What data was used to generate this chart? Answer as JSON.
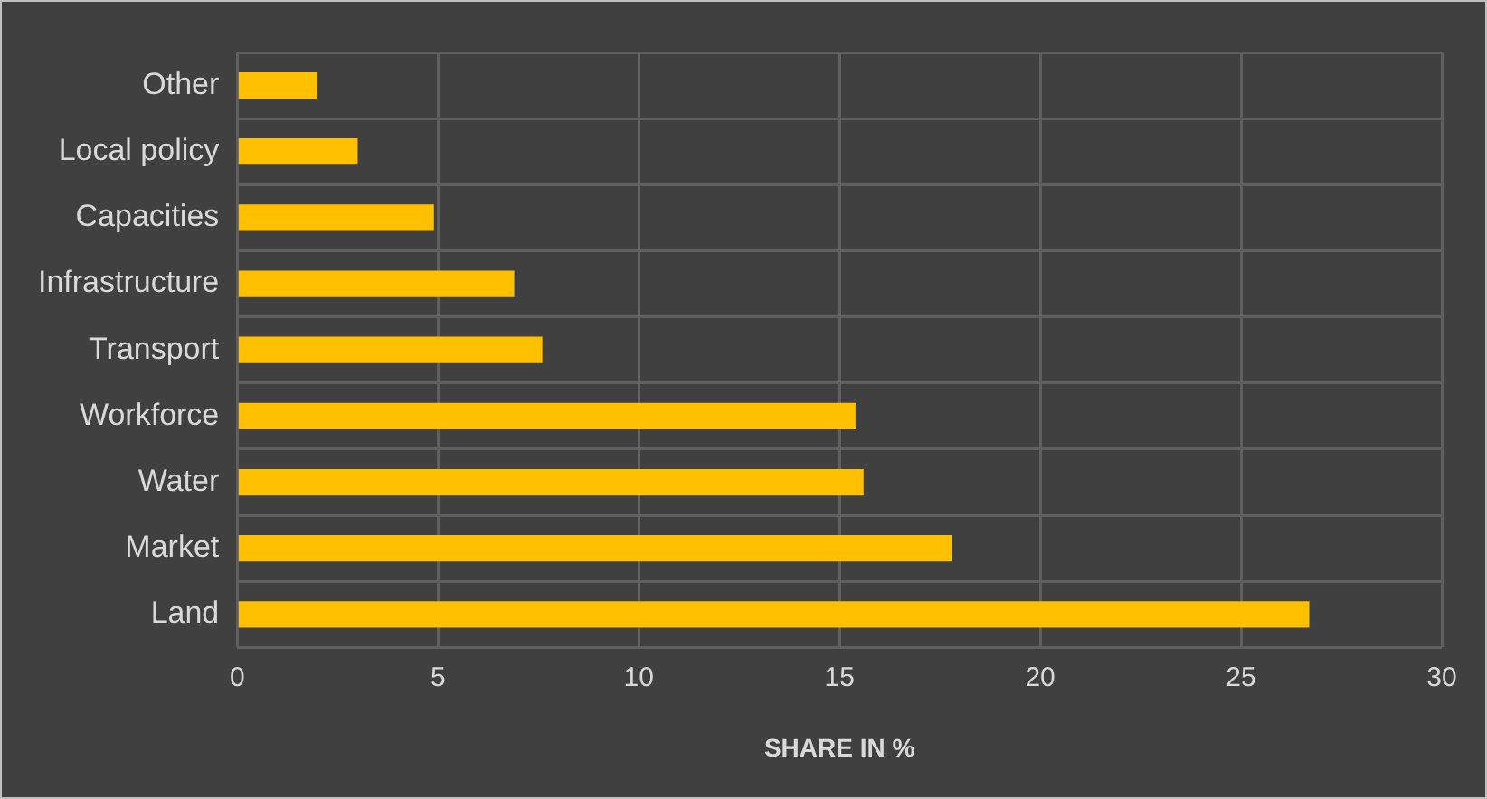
{
  "chart_data": {
    "type": "bar",
    "orientation": "horizontal",
    "xlabel": "SHARE IN %",
    "categories": [
      "Other",
      "Local policy",
      "Capacities",
      "Infrastructure",
      "Transport",
      "Workforce",
      "Water",
      "Market",
      "Land"
    ],
    "values": [
      2.0,
      3.0,
      4.9,
      6.9,
      7.6,
      15.4,
      15.6,
      17.8,
      26.7
    ],
    "color": "#ffc000",
    "xlim": [
      0,
      30
    ],
    "xticks": [
      0,
      5,
      10,
      15,
      20,
      25,
      30
    ],
    "grid": true
  }
}
